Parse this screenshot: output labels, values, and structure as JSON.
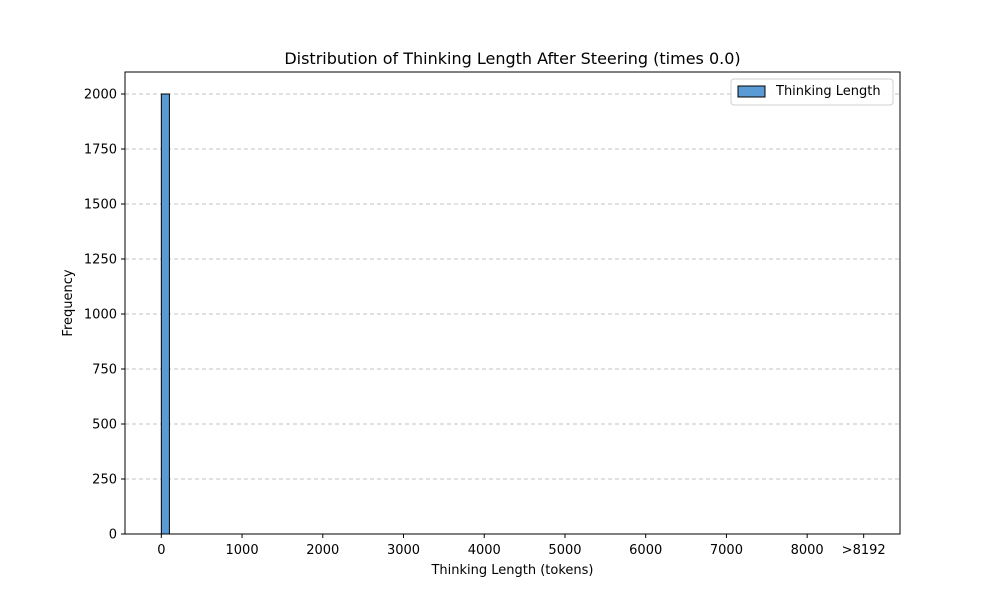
{
  "chart_data": {
    "type": "bar",
    "title": "Distribution of Thinking Length After Steering (times 0.0)",
    "xlabel": "Thinking Length (tokens)",
    "ylabel": "Frequency",
    "xlim": [
      -450,
      9150
    ],
    "ylim": [
      0,
      2100
    ],
    "x_ticks": [
      {
        "value": 0,
        "label": "0"
      },
      {
        "value": 1000,
        "label": "1000"
      },
      {
        "value": 2000,
        "label": "2000"
      },
      {
        "value": 3000,
        "label": "3000"
      },
      {
        "value": 4000,
        "label": "4000"
      },
      {
        "value": 5000,
        "label": "5000"
      },
      {
        "value": 6000,
        "label": "6000"
      },
      {
        "value": 7000,
        "label": "7000"
      },
      {
        "value": 8000,
        "label": "8000"
      },
      {
        "value": 8700,
        "label": ">8192"
      }
    ],
    "y_ticks": [
      0,
      250,
      500,
      750,
      1000,
      1250,
      1500,
      1750,
      2000
    ],
    "grid": {
      "y": true,
      "x": false,
      "style": "dashed"
    },
    "legend": {
      "position": "top-right"
    },
    "series": [
      {
        "name": "Thinking Length",
        "color": "#5b9bd5",
        "bins": [
          {
            "x0": 0,
            "x1": 100,
            "count": 2000
          }
        ]
      }
    ]
  }
}
